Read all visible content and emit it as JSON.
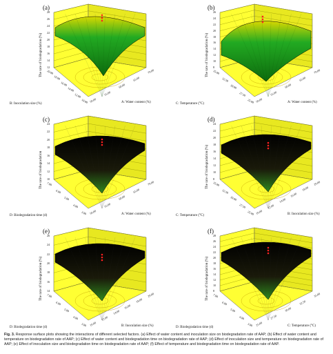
{
  "panels": [
    {
      "label": "(a)",
      "zlabel": "The rate of biodegradation (%)",
      "xlabel": "B: Inoculation size (%)",
      "ylabel": "A: Water content (%)",
      "zticks": [
        "12",
        "14",
        "16",
        "18",
        "20",
        "22",
        "24",
        "26",
        "28"
      ],
      "xticks": [
        "20.00",
        "18.00",
        "16.00",
        "14.00",
        "12.00",
        "10.00"
      ],
      "yticks": [
        "50.00",
        "55.00",
        "60.00",
        "65.00",
        "70.00"
      ],
      "style": "green-dome"
    },
    {
      "label": "(b)",
      "zlabel": "The rate of biodegradation (%)",
      "xlabel": "C: Temperature (°C)",
      "ylabel": "A: Water content (%)",
      "zticks": [
        "8",
        "10",
        "12",
        "14",
        "16",
        "18",
        "20",
        "22",
        "24",
        "26"
      ],
      "xticks": [
        "35.00",
        "32.50",
        "30.00",
        "27.50",
        "25.00"
      ],
      "yticks": [
        "50.00",
        "55.00",
        "60.00",
        "65.00",
        "70.00"
      ],
      "style": "green-dome"
    },
    {
      "label": "(c)",
      "zlabel": "The rate of biodegradation",
      "xlabel": "D: Biodegradation time (d)",
      "ylabel": "A: Water content (%)",
      "zticks": [
        "10",
        "12",
        "14",
        "16",
        "18",
        "20",
        "22",
        "24"
      ],
      "xticks": [
        "7.00",
        "6.00",
        "5.00",
        "4.00",
        "3.00"
      ],
      "yticks": [
        "50.00",
        "55.00",
        "60.00",
        "65.00",
        "70.00"
      ],
      "style": "dark-dome"
    },
    {
      "label": "(d)",
      "zlabel": "The rate of biodegradation (%)",
      "xlabel": "C: Temperature (°C)",
      "ylabel": "B: Inoculation size (%)",
      "zticks": [
        "8",
        "10",
        "12",
        "14",
        "16",
        "18",
        "20",
        "22",
        "24"
      ],
      "xticks": [
        "35.00",
        "32.50",
        "30.00",
        "27.50",
        "25.00"
      ],
      "yticks": [
        "10.00",
        "12.00",
        "14.00",
        "16.00",
        "18.00",
        "20.00"
      ],
      "style": "dark-dome"
    },
    {
      "label": "(e)",
      "zlabel": "The rate of biodegradation (%)",
      "xlabel": "D: Biodegradation time (d)",
      "ylabel": "B: Inoculation size (%)",
      "zticks": [
        "14",
        "16",
        "18",
        "20",
        "22",
        "24",
        "26"
      ],
      "xticks": [
        "7.00",
        "6.00",
        "5.00",
        "4.00",
        "3.00"
      ],
      "yticks": [
        "10.00",
        "12.00",
        "14.00",
        "16.00",
        "18.00",
        "20.00"
      ],
      "style": "dark-dome"
    },
    {
      "label": "(f)",
      "zlabel": "The rate of biodegradation (%)",
      "xlabel": "D: Biodegradation time (d)",
      "ylabel": "C: Temperature (°C)",
      "zticks": [
        "8",
        "10",
        "12",
        "14",
        "16",
        "18",
        "20",
        "22",
        "24",
        "26",
        "28"
      ],
      "xticks": [
        "7.00",
        "6.00",
        "5.00",
        "4.00",
        "3.00"
      ],
      "yticks": [
        "25.00",
        "27.50",
        "30.00",
        "32.50",
        "35.00"
      ],
      "style": "dark-dome"
    }
  ],
  "caption": {
    "prefix": "Fig. 3.",
    "text": " Response surface plots showing the interactions of different selected factors. (a) Effect of water content and inoculation size on biodegradation rate of AAP; (b) Effect of water content and temperature on biodegradation rate of AAP; (c) Effect of water content and biodegradation time on biodegradation rate of AAP; (d) Effect of inoculation size and temperature on biodegradation rate of AAP; (e) Effect of inoculation size and biodegradation time on biodegradation rate of AAP; (f) Effect of temperature and biodegradation time on biodegradation rate of AAP."
  },
  "colors": {
    "wall": "#ffff33",
    "wall_dark": "#e8e820",
    "grid": "#8a8a00",
    "surface_green": "#22aa22",
    "surface_dark": "#1a1a0a",
    "marker": "#ff2020"
  }
}
